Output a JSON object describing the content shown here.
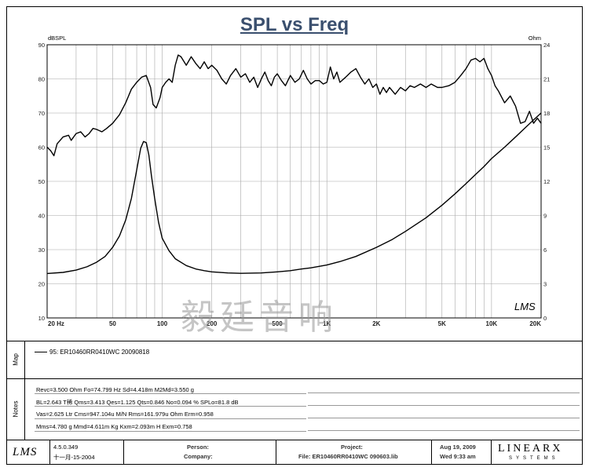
{
  "title": "SPL vs Freq",
  "watermark": "毅廷音响",
  "chart_data": {
    "type": "line",
    "title": "SPL vs Freq",
    "x_scale": "log",
    "xlim": [
      20,
      20000
    ],
    "x_ticks": [
      {
        "value": 20,
        "label": "20 Hz"
      },
      {
        "value": 50,
        "label": "50"
      },
      {
        "value": 100,
        "label": "100"
      },
      {
        "value": 200,
        "label": "200"
      },
      {
        "value": 500,
        "label": "500"
      },
      {
        "value": 1000,
        "label": "1K"
      },
      {
        "value": 2000,
        "label": "2K"
      },
      {
        "value": 5000,
        "label": "5K"
      },
      {
        "value": 10000,
        "label": "10K"
      },
      {
        "value": 20000,
        "label": "20K"
      }
    ],
    "left_axis": {
      "label": "dBSPL",
      "range": [
        10,
        90
      ],
      "ticks": [
        10,
        20,
        30,
        40,
        50,
        60,
        70,
        80,
        90
      ]
    },
    "right_axis": {
      "label": "Ohm",
      "range": [
        0,
        24
      ],
      "ticks": [
        0,
        3,
        6,
        9,
        12,
        15,
        18,
        21,
        24
      ]
    },
    "grid": true,
    "corner_mark": "LMS",
    "series": [
      {
        "name": "SPL",
        "axis": "left",
        "points": [
          [
            20,
            60
          ],
          [
            21,
            59
          ],
          [
            22,
            57.5
          ],
          [
            23,
            61
          ],
          [
            25,
            63
          ],
          [
            27,
            63.5
          ],
          [
            28,
            62
          ],
          [
            30,
            64
          ],
          [
            32,
            64.5
          ],
          [
            34,
            63
          ],
          [
            36,
            64
          ],
          [
            38,
            65.5
          ],
          [
            40,
            65.2
          ],
          [
            43,
            64.5
          ],
          [
            46,
            65.5
          ],
          [
            50,
            67
          ],
          [
            55,
            69.5
          ],
          [
            60,
            73
          ],
          [
            65,
            77
          ],
          [
            70,
            79
          ],
          [
            75,
            80.5
          ],
          [
            80,
            81
          ],
          [
            85,
            77.5
          ],
          [
            88,
            72.5
          ],
          [
            92,
            71.5
          ],
          [
            97,
            74.5
          ],
          [
            100,
            77.5
          ],
          [
            105,
            79
          ],
          [
            110,
            80
          ],
          [
            115,
            79
          ],
          [
            120,
            84
          ],
          [
            125,
            87
          ],
          [
            130,
            86.5
          ],
          [
            140,
            84
          ],
          [
            150,
            86.5
          ],
          [
            160,
            84.5
          ],
          [
            170,
            83
          ],
          [
            180,
            85
          ],
          [
            190,
            83
          ],
          [
            200,
            84
          ],
          [
            215,
            82.5
          ],
          [
            230,
            80
          ],
          [
            245,
            78.5
          ],
          [
            260,
            81
          ],
          [
            280,
            83
          ],
          [
            300,
            80.5
          ],
          [
            320,
            81.5
          ],
          [
            340,
            79
          ],
          [
            360,
            80.5
          ],
          [
            380,
            77.5
          ],
          [
            400,
            80
          ],
          [
            420,
            82
          ],
          [
            440,
            79.5
          ],
          [
            460,
            78
          ],
          [
            480,
            80.5
          ],
          [
            500,
            81.5
          ],
          [
            530,
            79.5
          ],
          [
            560,
            78
          ],
          [
            600,
            81
          ],
          [
            640,
            79
          ],
          [
            680,
            80
          ],
          [
            720,
            82.5
          ],
          [
            760,
            80
          ],
          [
            800,
            78.5
          ],
          [
            850,
            79.5
          ],
          [
            900,
            79.5
          ],
          [
            950,
            78.5
          ],
          [
            1000,
            79
          ],
          [
            1050,
            83.5
          ],
          [
            1100,
            80
          ],
          [
            1150,
            82
          ],
          [
            1200,
            79
          ],
          [
            1300,
            80.5
          ],
          [
            1400,
            82
          ],
          [
            1500,
            83
          ],
          [
            1600,
            80.5
          ],
          [
            1700,
            78.5
          ],
          [
            1800,
            80
          ],
          [
            1900,
            77.5
          ],
          [
            2000,
            78.5
          ],
          [
            2100,
            75.5
          ],
          [
            2200,
            77.5
          ],
          [
            2300,
            76
          ],
          [
            2400,
            77.5
          ],
          [
            2600,
            75.5
          ],
          [
            2800,
            77.5
          ],
          [
            3000,
            76.5
          ],
          [
            3200,
            78
          ],
          [
            3400,
            77.5
          ],
          [
            3700,
            78.5
          ],
          [
            4000,
            77.5
          ],
          [
            4300,
            78.5
          ],
          [
            4700,
            77.5
          ],
          [
            5000,
            77.5
          ],
          [
            5500,
            78
          ],
          [
            6000,
            79
          ],
          [
            6500,
            81
          ],
          [
            7000,
            83
          ],
          [
            7500,
            85.5
          ],
          [
            8000,
            86
          ],
          [
            8500,
            85
          ],
          [
            9000,
            86
          ],
          [
            9500,
            83
          ],
          [
            10000,
            81
          ],
          [
            10500,
            78
          ],
          [
            11000,
            76.5
          ],
          [
            12000,
            73
          ],
          [
            13000,
            75
          ],
          [
            14000,
            72
          ],
          [
            15000,
            67
          ],
          [
            16000,
            67.5
          ],
          [
            17000,
            70.5
          ],
          [
            18000,
            67
          ],
          [
            19000,
            68.5
          ],
          [
            20000,
            67
          ]
        ]
      },
      {
        "name": "Impedance",
        "axis": "right",
        "points": [
          [
            20,
            3.9
          ],
          [
            25,
            4.0
          ],
          [
            30,
            4.2
          ],
          [
            35,
            4.5
          ],
          [
            40,
            4.9
          ],
          [
            45,
            5.4
          ],
          [
            50,
            6.2
          ],
          [
            55,
            7.2
          ],
          [
            60,
            8.6
          ],
          [
            65,
            10.5
          ],
          [
            70,
            13.0
          ],
          [
            74,
            14.9
          ],
          [
            77,
            15.5
          ],
          [
            80,
            15.4
          ],
          [
            83,
            14.3
          ],
          [
            86,
            12.5
          ],
          [
            90,
            10.5
          ],
          [
            95,
            8.4
          ],
          [
            100,
            7.0
          ],
          [
            110,
            5.9
          ],
          [
            120,
            5.2
          ],
          [
            140,
            4.6
          ],
          [
            160,
            4.3
          ],
          [
            180,
            4.15
          ],
          [
            200,
            4.05
          ],
          [
            250,
            3.95
          ],
          [
            300,
            3.92
          ],
          [
            400,
            3.95
          ],
          [
            500,
            4.05
          ],
          [
            600,
            4.15
          ],
          [
            700,
            4.3
          ],
          [
            800,
            4.4
          ],
          [
            1000,
            4.65
          ],
          [
            1200,
            4.95
          ],
          [
            1500,
            5.4
          ],
          [
            2000,
            6.2
          ],
          [
            2500,
            6.9
          ],
          [
            3000,
            7.6
          ],
          [
            4000,
            8.8
          ],
          [
            5000,
            9.9
          ],
          [
            6000,
            10.9
          ],
          [
            7000,
            11.8
          ],
          [
            8000,
            12.6
          ],
          [
            9000,
            13.3
          ],
          [
            10000,
            14.0
          ],
          [
            12000,
            15.0
          ],
          [
            14000,
            15.9
          ],
          [
            16000,
            16.7
          ],
          [
            18000,
            17.4
          ],
          [
            20000,
            18.0
          ]
        ]
      }
    ]
  },
  "map": {
    "side_label": "Map",
    "entry": "95: ER10460RR0410WC  20090818"
  },
  "notes": {
    "side_label": "Notes",
    "lines": [
      "Revc=3.500 Ohm  Fo=74.799 Hz  Sd=4.418m M2Md=3.550 g",
      "BL=2.643 T稀  Qms=3.413  Qes=1.125  Qts=0.846  No=0.094 %  SPLo=81.8 dB",
      "Vas=2.625 Ltr  Cms=947.104u M/N  Rms=161.979u Ohm  Erm=0.958",
      "Mms=4.780 g  Mmd=4.611m Kg  Kxm=2.093m H  Exm=0.758"
    ]
  },
  "footer": {
    "logo": "LMS",
    "version": "4.5.0.349",
    "date_line": "十一月-15-2004",
    "person_label": "Person:",
    "company_label": "Company:",
    "project_label": "Project:",
    "file_label": "File: ER10460RR0410WC  090603.lib",
    "date": "Aug 19, 2009",
    "time": "Wed  9:33 am",
    "brand": "LINEARX",
    "brand_sub": "SYSTEMS"
  }
}
